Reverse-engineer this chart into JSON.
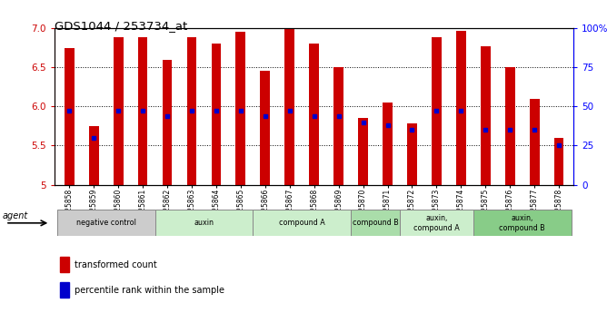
{
  "title": "GDS1044 / 253734_at",
  "samples": [
    "GSM25858",
    "GSM25859",
    "GSM25860",
    "GSM25861",
    "GSM25862",
    "GSM25863",
    "GSM25864",
    "GSM25865",
    "GSM25866",
    "GSM25867",
    "GSM25868",
    "GSM25869",
    "GSM25870",
    "GSM25871",
    "GSM25872",
    "GSM25873",
    "GSM25874",
    "GSM25875",
    "GSM25876",
    "GSM25877",
    "GSM25878"
  ],
  "bar_heights": [
    6.75,
    5.75,
    6.88,
    6.88,
    6.6,
    6.88,
    6.8,
    6.95,
    6.45,
    7.0,
    6.8,
    6.5,
    5.85,
    6.05,
    5.78,
    6.88,
    6.97,
    6.77,
    6.5,
    6.1,
    5.6
  ],
  "percentile_ranks": [
    47,
    30,
    47,
    47,
    44,
    47,
    47,
    47,
    44,
    47,
    44,
    44,
    40,
    38,
    35,
    47,
    47,
    35,
    35,
    35,
    25
  ],
  "bar_color": "#CC0000",
  "dot_color": "#0000CC",
  "ylim": [
    5.0,
    7.0
  ],
  "y2lim": [
    0,
    100
  ],
  "yticks": [
    5.0,
    5.5,
    6.0,
    6.5,
    7.0
  ],
  "y2ticks": [
    0,
    25,
    50,
    75,
    100
  ],
  "y2ticklabels": [
    "0",
    "25",
    "50",
    "75",
    "100%"
  ],
  "groups": [
    {
      "label": "negative control",
      "start": 0,
      "end": 3,
      "color": "#CCCCCC"
    },
    {
      "label": "auxin",
      "start": 4,
      "end": 7,
      "color": "#CCEECC"
    },
    {
      "label": "compound A",
      "start": 8,
      "end": 11,
      "color": "#CCEECC"
    },
    {
      "label": "compound B",
      "start": 12,
      "end": 13,
      "color": "#AADDAA"
    },
    {
      "label": "auxin,\ncompound A",
      "start": 14,
      "end": 16,
      "color": "#CCEECC"
    },
    {
      "label": "auxin,\ncompound B",
      "start": 17,
      "end": 20,
      "color": "#88CC88"
    }
  ],
  "legend_items": [
    "transformed count",
    "percentile rank within the sample"
  ],
  "agent_label": "agent",
  "background_color": "#FFFFFF"
}
